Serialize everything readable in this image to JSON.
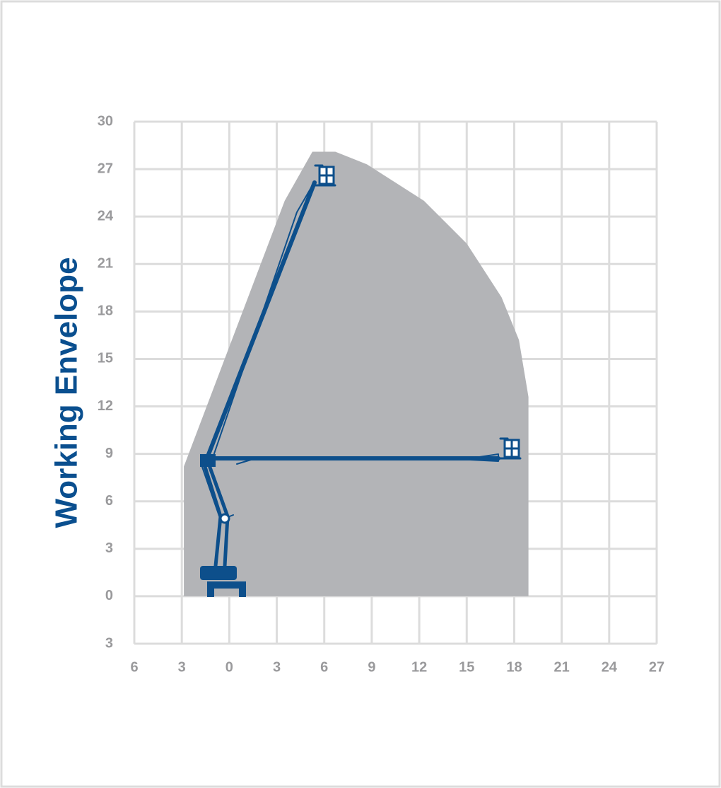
{
  "chart_data": {
    "type": "area",
    "title": "Working Envelope",
    "x": [
      -2.87,
      -2.87,
      3.5,
      5.25,
      6.7,
      8.7,
      12.3,
      15,
      17.2,
      18.3,
      18.9,
      18.9
    ],
    "values": [
      0,
      8.2,
      25,
      28.1,
      28.1,
      27.3,
      25,
      22.3,
      18.9,
      16.2,
      12.6,
      0
    ],
    "color": "#b3b4b7",
    "xlim": [
      -6,
      27
    ],
    "ylim": [
      -3,
      30
    ],
    "xticks": [
      {
        "value": -6,
        "label": "6"
      },
      {
        "value": -3,
        "label": "3"
      },
      0,
      3,
      6,
      9,
      12,
      15,
      18,
      21,
      24,
      27
    ],
    "yticks": [
      {
        "value": -3,
        "label": "3"
      },
      0,
      3,
      6,
      9,
      12,
      15,
      18,
      21,
      24,
      27,
      30
    ],
    "grid": true
  }
}
